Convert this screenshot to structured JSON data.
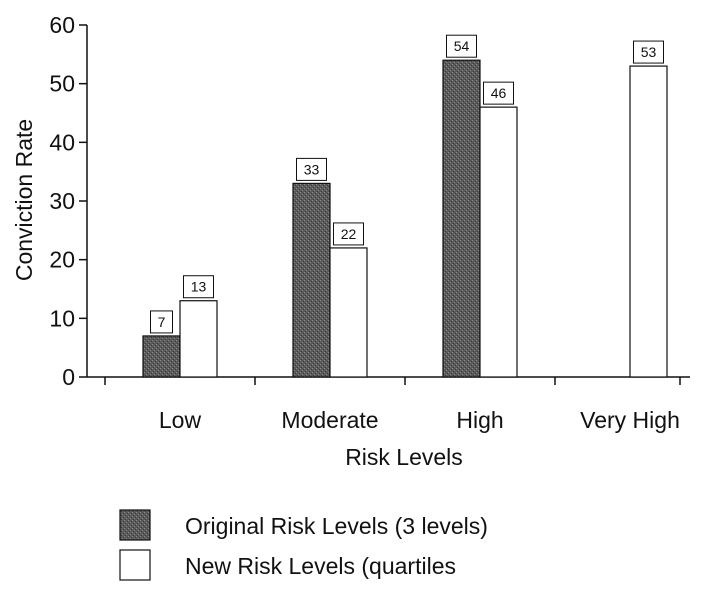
{
  "chart_data": {
    "type": "bar",
    "categories": [
      "Low",
      "Moderate",
      "High",
      "Very High"
    ],
    "series": [
      {
        "name": "Original Risk Levels (3 levels)",
        "values": [
          7,
          33,
          54,
          null
        ],
        "color": "#555555"
      },
      {
        "name": "New Risk Levels (quartiles",
        "values": [
          13,
          22,
          46,
          53
        ],
        "color": "#ffffff"
      }
    ],
    "data_labels": [
      [
        "7",
        "33",
        "54",
        ""
      ],
      [
        "13",
        "22",
        "46",
        "53"
      ]
    ],
    "xlabel": "Risk Levels",
    "ylabel": "Conviction Rate",
    "ylim": [
      0,
      60
    ],
    "yticks": [
      0,
      10,
      20,
      30,
      40,
      50,
      60
    ],
    "grid": false,
    "legend_position": "bottom"
  }
}
